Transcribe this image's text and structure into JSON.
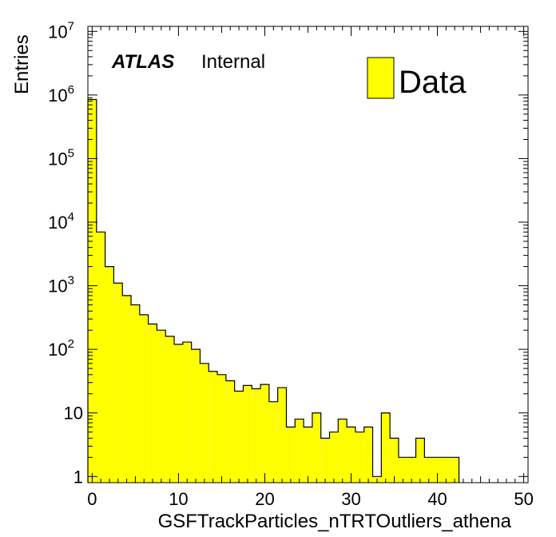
{
  "chart_data": {
    "type": "bar",
    "histogram": true,
    "xlabel": "GSFTrackParticles_nTRTOutliers_athena",
    "ylabel": "Entries",
    "xlim": [
      -0.5,
      50.5
    ],
    "ylim": [
      0.8,
      12000000
    ],
    "yscale": "log",
    "bin_width": 1,
    "x_ticks": [
      0,
      10,
      20,
      30,
      40,
      50
    ],
    "y_ticks": [
      {
        "value": 1,
        "base": "1",
        "exp": ""
      },
      {
        "value": 10,
        "base": "10",
        "exp": ""
      },
      {
        "value": 100,
        "base": "10",
        "exp": "2"
      },
      {
        "value": 1000,
        "base": "10",
        "exp": "3"
      },
      {
        "value": 10000,
        "base": "10",
        "exp": "4"
      },
      {
        "value": 100000,
        "base": "10",
        "exp": "5"
      },
      {
        "value": 1000000,
        "base": "10",
        "exp": "6"
      },
      {
        "value": 10000000,
        "base": "10",
        "exp": "7"
      }
    ],
    "bin_low_edges": [
      -0.5,
      0.5,
      1.5,
      2.5,
      3.5,
      4.5,
      5.5,
      6.5,
      7.5,
      8.5,
      9.5,
      10.5,
      11.5,
      12.5,
      13.5,
      14.5,
      15.5,
      16.5,
      17.5,
      18.5,
      19.5,
      20.5,
      21.5,
      22.5,
      23.5,
      24.5,
      25.5,
      26.5,
      27.5,
      28.5,
      29.5,
      30.5,
      31.5,
      32.5,
      33.5,
      34.5,
      35.5,
      36.5,
      37.5,
      38.5,
      39.5,
      40.5,
      41.5
    ],
    "values": [
      850000,
      7000,
      2000,
      1100,
      700,
      500,
      350,
      250,
      200,
      160,
      120,
      130,
      100,
      60,
      45,
      40,
      32,
      22,
      27,
      24,
      28,
      15,
      25,
      6,
      8,
      6,
      10,
      4,
      5,
      8,
      6,
      5,
      6,
      1,
      10,
      4,
      2,
      2,
      4,
      2,
      2,
      2,
      2
    ],
    "series": [
      {
        "name": "Data",
        "color": "#ffff00"
      }
    ],
    "legend_position": "top-right",
    "annotation": {
      "bold": "ATLAS",
      "normal": "Internal"
    }
  }
}
